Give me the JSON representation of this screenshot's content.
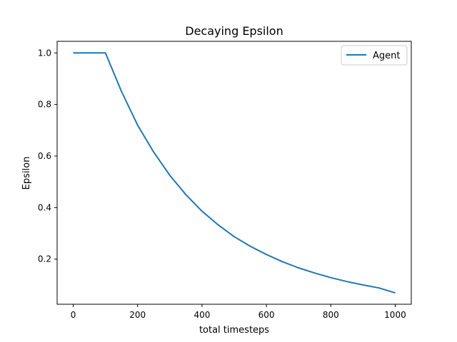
{
  "chart_data": {
    "type": "line",
    "title": "Decaying Epsilon",
    "xlabel": "total timesteps",
    "ylabel": "Epsilon",
    "xlim": [
      -50,
      1050
    ],
    "ylim": [
      0.025,
      1.045
    ],
    "xticks": [
      0,
      200,
      400,
      600,
      800,
      1000
    ],
    "yticks": [
      0.2,
      0.4,
      0.6,
      0.8,
      1.0
    ],
    "xtick_labels": [
      "0",
      "200",
      "400",
      "600",
      "800",
      "1000"
    ],
    "ytick_labels": [
      "0.2",
      "0.4",
      "0.6",
      "0.8",
      "1.0"
    ],
    "grid": false,
    "legend": {
      "placement": "upper-right",
      "entries": [
        "Agent"
      ]
    },
    "colors": {
      "Agent": "#1f77b4"
    },
    "series": [
      {
        "name": "Agent",
        "x": [
          0,
          100,
          150,
          200,
          250,
          300,
          350,
          400,
          450,
          500,
          550,
          600,
          650,
          700,
          750,
          800,
          850,
          900,
          950,
          1000
        ],
        "y": [
          1.0,
          1.0,
          0.85,
          0.72,
          0.615,
          0.525,
          0.45,
          0.386,
          0.333,
          0.287,
          0.25,
          0.218,
          0.19,
          0.166,
          0.146,
          0.128,
          0.113,
          0.1,
          0.088,
          0.069
        ]
      }
    ]
  }
}
